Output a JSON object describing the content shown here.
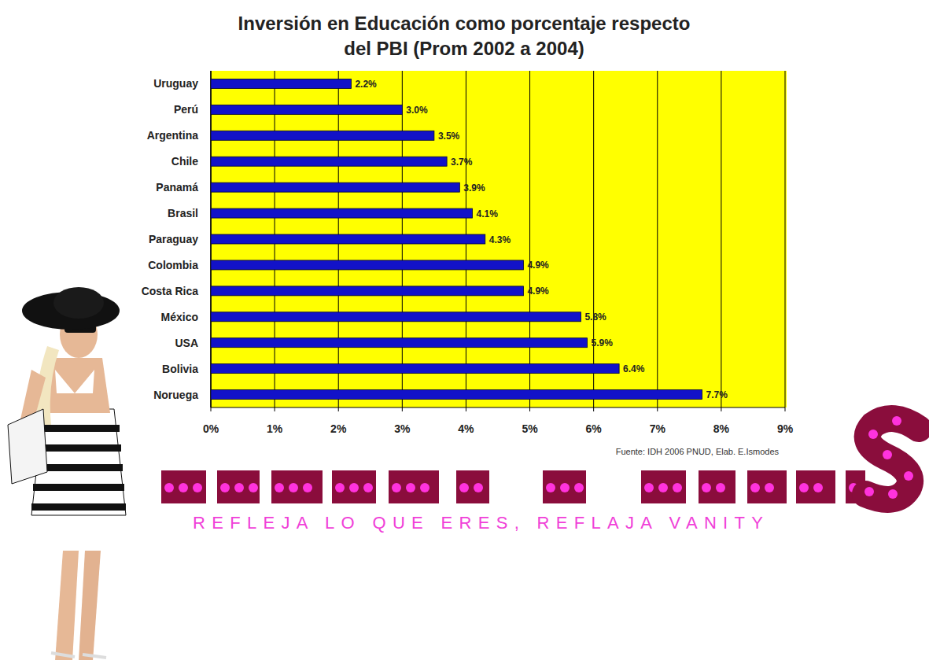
{
  "chart_data": {
    "type": "bar",
    "title": "Inversión en Educación como porcentaje respecto del PBI (Prom 2002 a 2004)",
    "orientation": "horizontal",
    "categories": [
      "Uruguay",
      "Perú",
      "Argentina",
      "Chile",
      "Panamá",
      "Brasil",
      "Paraguay",
      "Colombia",
      "Costa Rica",
      "México",
      "USA",
      "Bolivia",
      "Noruega"
    ],
    "values": [
      2.2,
      3.0,
      3.5,
      3.7,
      3.9,
      4.1,
      4.3,
      4.9,
      4.9,
      5.8,
      5.9,
      6.4,
      7.7
    ],
    "value_labels": [
      "2.2%",
      "3.0%",
      "3.5%",
      "3.7%",
      "3.9%",
      "4.1%",
      "4.3%",
      "4.9%",
      "4.9%",
      "5.8%",
      "5.9%",
      "6.4%",
      "7.7%"
    ],
    "color": "#1212c8",
    "data_labels": true,
    "grid": true,
    "xlim": [
      0,
      9
    ],
    "xticks": [
      {
        "value": 0,
        "label": "0%"
      },
      {
        "value": 1,
        "label": "1%"
      },
      {
        "value": 2,
        "label": "2%"
      },
      {
        "value": 3,
        "label": "3%"
      },
      {
        "value": 4,
        "label": "4%"
      },
      {
        "value": 5,
        "label": "5%"
      },
      {
        "value": 6,
        "label": "6%"
      },
      {
        "value": 7,
        "label": "7%"
      },
      {
        "value": 8,
        "label": "8%"
      },
      {
        "value": 9,
        "label": "9%"
      }
    ],
    "source": "Fuente: IDH 2006 PNUD, Elab. E.Ismodes",
    "annotations": [
      "REFLEJA LO QUE ERES, REFLAJA VANITY"
    ]
  }
}
